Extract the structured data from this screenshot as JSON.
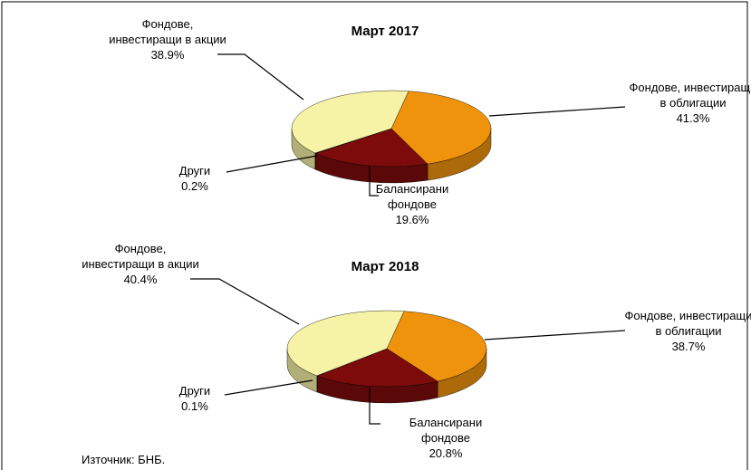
{
  "chart_data": [
    {
      "type": "pie3d",
      "title": "Март 2017",
      "categories": [
        "Фондове, инвестиращи в облигации",
        "Балансирани фондове",
        "Други",
        "Фондове, инвестиращи в акции"
      ],
      "values": [
        41.3,
        19.6,
        0.2,
        38.9
      ],
      "value_labels": [
        "41.3%",
        "19.6%",
        "0.2%",
        "38.9%"
      ],
      "colors": [
        "#f0930c",
        "#7d0b0b",
        "#6a1010",
        "#f6f2a6"
      ]
    },
    {
      "type": "pie3d",
      "title": "Март 2018",
      "categories": [
        "Фондове, инвестиращи в облигации",
        "Балансирани фондове",
        "Други",
        "Фондове, инвестиращи в акции"
      ],
      "values": [
        38.7,
        20.8,
        0.1,
        40.4
      ],
      "value_labels": [
        "38.7%",
        "20.8%",
        "0.1%",
        "40.4%"
      ],
      "colors": [
        "#f0930c",
        "#7d0b0b",
        "#6a1010",
        "#f6f2a6"
      ]
    }
  ],
  "source": "Източник: БНБ."
}
